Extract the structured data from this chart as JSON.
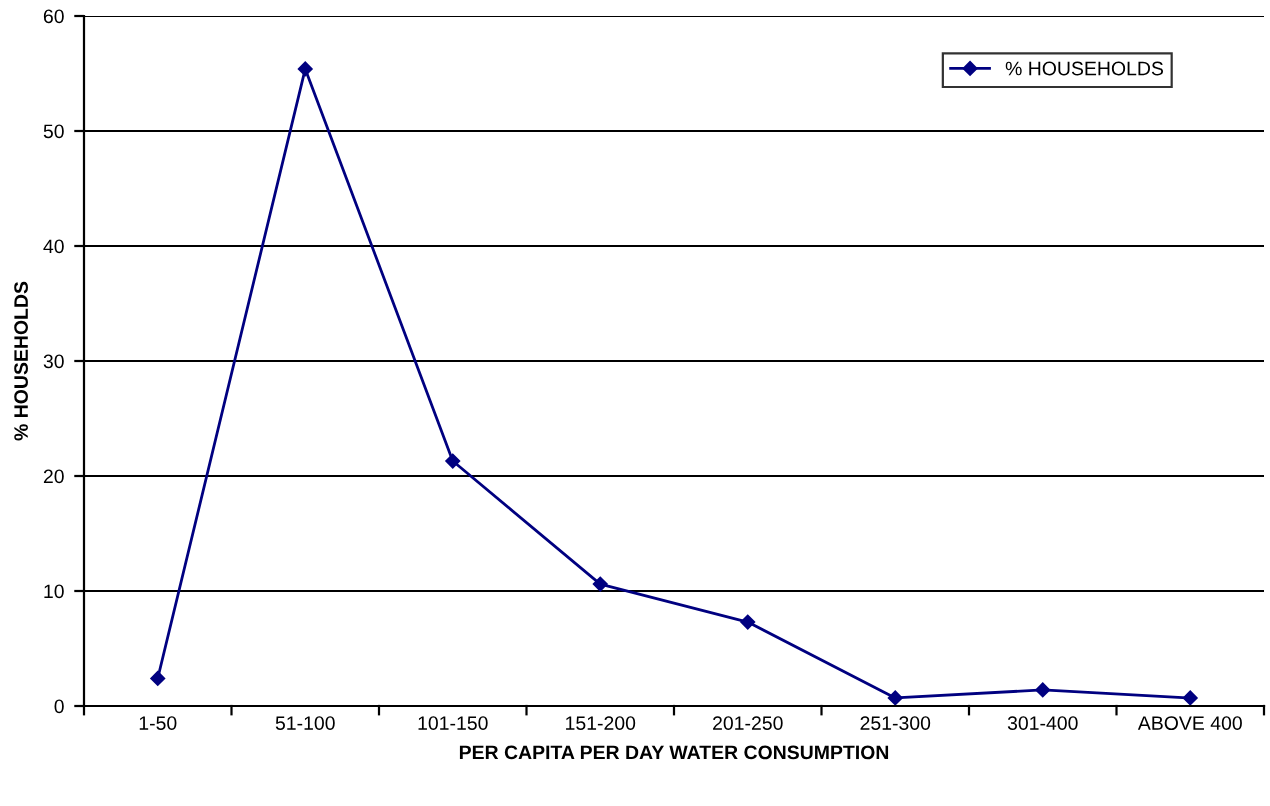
{
  "chart_data": {
    "type": "line",
    "xlabel": "PER CAPITA PER DAY WATER CONSUMPTION",
    "ylabel": "% HOUSEHOLDS",
    "categories": [
      "1-50",
      "51-100",
      "101-150",
      "151-200",
      "201-250",
      "251-300",
      "301-400",
      "ABOVE 400"
    ],
    "series": [
      {
        "name": "% HOUSEHOLDS",
        "color": "#000080",
        "values": [
          2.4,
          55.4,
          21.3,
          10.6,
          7.3,
          0.7,
          1.4,
          0.7
        ]
      }
    ],
    "ylim": [
      0,
      60
    ],
    "yticks": [
      0,
      10,
      20,
      30,
      40,
      50,
      60
    ],
    "grid": "y",
    "legend": "top right",
    "marker": "diamond",
    "line_style": "solid"
  }
}
